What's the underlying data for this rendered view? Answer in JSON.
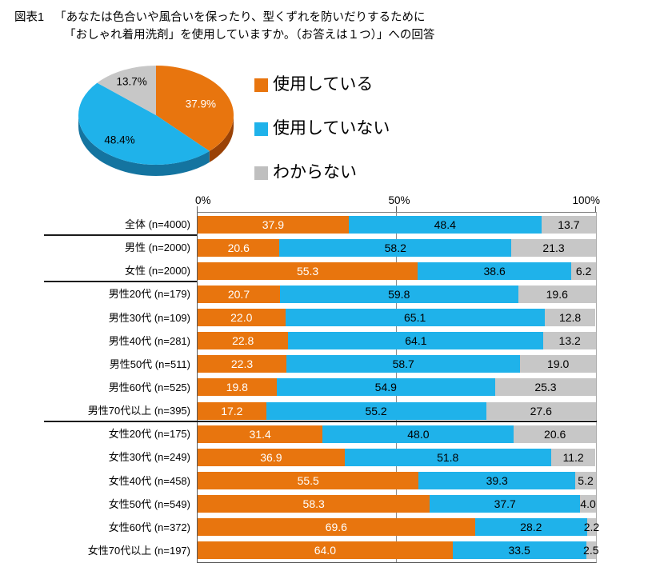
{
  "title": {
    "prefix": "図表1",
    "line1": "「あなたは色合いや風合いを保ったり、型くずれを防いだりするために",
    "line2": "「おしゃれ着用洗剤」を使用していますか。（お答えは１つ）」への回答"
  },
  "colors": {
    "orange": "#E8750E",
    "blue": "#1FB2EA",
    "gray": "#C7C7C7",
    "legend_gray": "#BFBFBF",
    "orange_dark": "#9A4206",
    "blue_dark": "#1474A0",
    "gray_dark": "#9E9E9E"
  },
  "legend": {
    "items": [
      {
        "label": "使用している"
      },
      {
        "label": "使用していない"
      },
      {
        "label": "わからない"
      }
    ]
  },
  "chart_data": [
    {
      "type": "pie",
      "style": "3d",
      "labels": [
        "使用している",
        "使用していない",
        "わからない"
      ],
      "values": [
        37.9,
        48.4,
        13.7
      ],
      "unit": "%",
      "start_angle": "12-oclock",
      "direction": "clockwise",
      "data_label_format": "0.0%"
    },
    {
      "type": "bar",
      "stacked": true,
      "orientation": "horizontal",
      "xlim": [
        0,
        100
      ],
      "x_ticks": [
        "0%",
        "50%",
        "100%"
      ],
      "grid": "50%-line",
      "categories": [
        "全体 (n=4000)",
        "男性 (n=2000)",
        "女性 (n=2000)",
        "男性20代 (n=179)",
        "男性30代 (n=109)",
        "男性40代 (n=281)",
        "男性50代 (n=511)",
        "男性60代 (n=525)",
        "男性70代以上 (n=395)",
        "女性20代 (n=175)",
        "女性30代 (n=249)",
        "女性40代 (n=458)",
        "女性50代 (n=549)",
        "女性60代 (n=372)",
        "女性70代以上 (n=197)"
      ],
      "series": [
        {
          "name": "使用している",
          "color_key": "orange",
          "label_color": "#FFFFFF",
          "values": [
            37.9,
            20.6,
            55.3,
            20.7,
            22.0,
            22.8,
            22.3,
            19.8,
            17.2,
            31.4,
            36.9,
            55.5,
            58.3,
            69.6,
            64.0
          ]
        },
        {
          "name": "使用していない",
          "color_key": "blue",
          "label_color": "#000000",
          "values": [
            48.4,
            58.2,
            38.6,
            59.8,
            65.1,
            64.1,
            58.7,
            54.9,
            55.2,
            48.0,
            51.8,
            39.3,
            37.7,
            28.2,
            33.5
          ]
        },
        {
          "name": "わからない",
          "color_key": "gray",
          "label_color": "#000000",
          "values": [
            13.7,
            21.3,
            6.2,
            19.6,
            12.8,
            13.2,
            19.0,
            25.3,
            27.6,
            20.6,
            11.2,
            5.2,
            4.0,
            2.2,
            2.5
          ]
        }
      ]
    }
  ]
}
